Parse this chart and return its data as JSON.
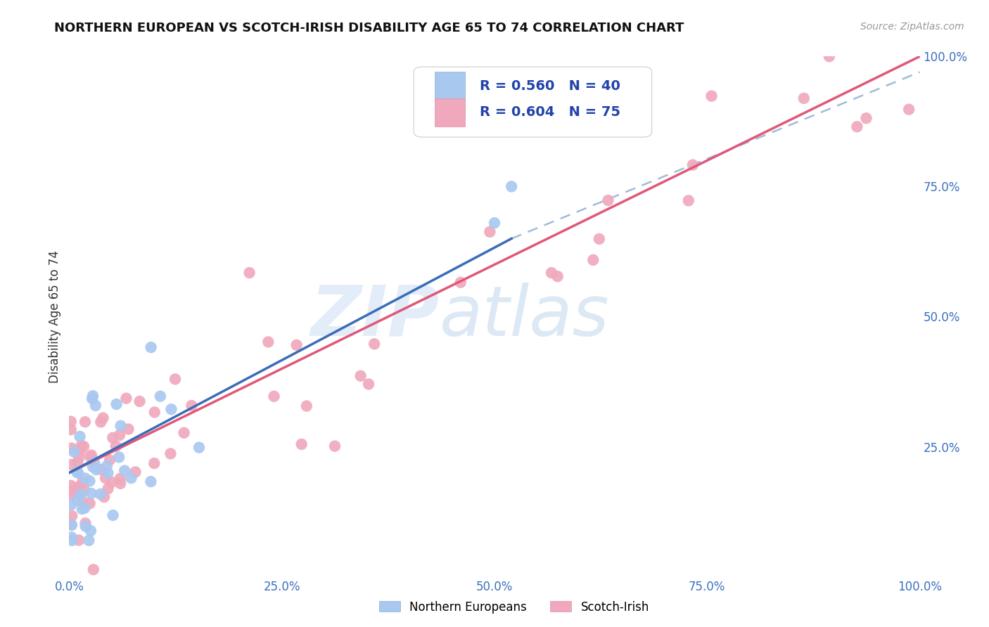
{
  "title": "NORTHERN EUROPEAN VS SCOTCH-IRISH DISABILITY AGE 65 TO 74 CORRELATION CHART",
  "source": "Source: ZipAtlas.com",
  "ylabel": "Disability Age 65 to 74",
  "xlim": [
    0,
    1
  ],
  "ylim": [
    0,
    1
  ],
  "xticks": [
    0.0,
    0.25,
    0.5,
    0.75,
    1.0
  ],
  "xticklabels": [
    "0.0%",
    "25.0%",
    "50.0%",
    "75.0%",
    "100.0%"
  ],
  "yticks_right": [
    0.25,
    0.5,
    0.75,
    1.0
  ],
  "yticklabels_right": [
    "25.0%",
    "50.0%",
    "75.0%",
    "100.0%"
  ],
  "blue_R": "R = 0.560",
  "blue_N": "N = 40",
  "pink_R": "R = 0.604",
  "pink_N": "N = 75",
  "blue_color": "#a8c8f0",
  "pink_color": "#f0a8bc",
  "blue_line_color": "#3a6cb8",
  "pink_line_color": "#e05878",
  "dashed_line_color": "#a0bcd8",
  "legend_label_blue": "Northern Europeans",
  "legend_label_pink": "Scotch-Irish",
  "blue_line_x": [
    0.0,
    0.52
  ],
  "blue_line_y": [
    0.2,
    0.65
  ],
  "pink_line_x": [
    0.0,
    1.0
  ],
  "pink_line_y": [
    0.2,
    1.0
  ],
  "dash_line_x": [
    0.52,
    1.0
  ],
  "dash_line_y": [
    0.65,
    0.97
  ],
  "grid_color": "#d8e4f0",
  "title_fontsize": 13,
  "tick_fontsize": 12,
  "legend_fontsize": 14
}
